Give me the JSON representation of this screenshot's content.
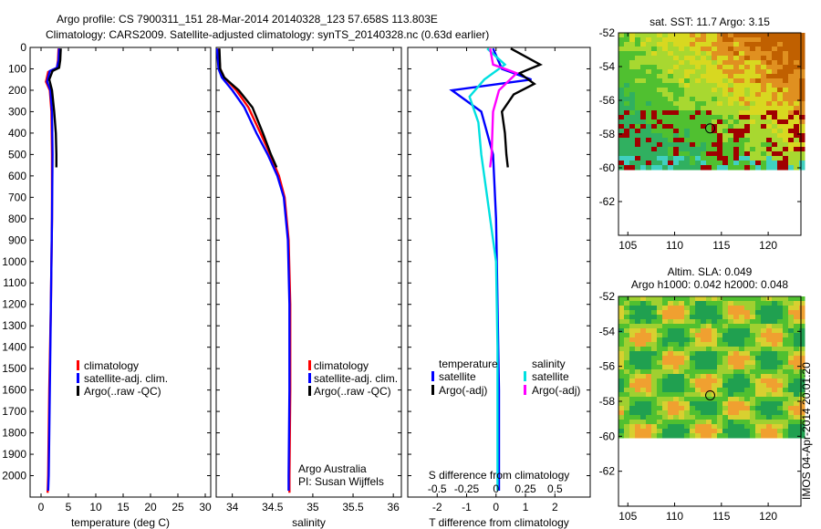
{
  "header": {
    "line1": "Argo profile: CS 7900311_151 28-Mar-2014 20140328_123 57.658S 113.803E",
    "line2": "Climatology: CARS2009. Satellite-adjusted climatology: synTS_20140328.nc (0.63d earlier)"
  },
  "credit": {
    "org": "Argo Australia",
    "pi": "PI: Susan Wijffels"
  },
  "stamp": "IMOS 04-Apr-2014 20:01:20",
  "colors": {
    "climatology": "#ff0000",
    "satellite_adj": "#0000ff",
    "argo": "#000000",
    "sat_diff_S": "#00e0e0",
    "argo_diff_S": "#ff00ff"
  },
  "legend_main": {
    "clim": "climatology",
    "sat": "satellite-adj. clim.",
    "argo": "Argo(..raw -QC)"
  },
  "legend_diff": {
    "t_head": "temperature",
    "s_head": "salinity",
    "t_sat": "satellite",
    "t_argo": "Argo(-adj)",
    "s_sat": "satellite",
    "s_argo": "Argo(-adj)"
  },
  "chart_data": [
    {
      "type": "line",
      "xlabel": "temperature (deg C)",
      "ylabel": "",
      "xlim": [
        -2,
        31
      ],
      "ylim": [
        0,
        2100
      ],
      "y_reversed": true,
      "xticks": [
        0,
        5,
        10,
        15,
        20,
        25,
        30
      ],
      "yticks": [
        0,
        100,
        200,
        300,
        400,
        500,
        600,
        700,
        800,
        900,
        1000,
        1100,
        1200,
        1300,
        1400,
        1500,
        1600,
        1700,
        1800,
        1900,
        2000
      ],
      "series": [
        {
          "name": "climatology",
          "color": "#ff0000",
          "points": [
            [
              3.2,
              5
            ],
            [
              3.1,
              60
            ],
            [
              2.9,
              95
            ],
            [
              1.3,
              115
            ],
            [
              0.9,
              160
            ],
            [
              1.6,
              200
            ],
            [
              1.9,
              300
            ],
            [
              2.0,
              500
            ],
            [
              2.0,
              800
            ],
            [
              1.8,
              1200
            ],
            [
              1.5,
              1600
            ],
            [
              1.3,
              2000
            ],
            [
              1.2,
              2080
            ]
          ]
        },
        {
          "name": "satellite-adj. clim.",
          "color": "#0000ff",
          "points": [
            [
              3.3,
              5
            ],
            [
              3.2,
              60
            ],
            [
              2.9,
              95
            ],
            [
              1.6,
              110
            ],
            [
              1.1,
              160
            ],
            [
              1.7,
              200
            ],
            [
              2.0,
              300
            ],
            [
              2.1,
              500
            ],
            [
              2.0,
              800
            ],
            [
              1.8,
              1200
            ],
            [
              1.6,
              1600
            ],
            [
              1.4,
              2000
            ],
            [
              1.3,
              2070
            ]
          ]
        },
        {
          "name": "Argo(..raw -QC)",
          "color": "#000000",
          "points": [
            [
              3.6,
              5
            ],
            [
              3.5,
              60
            ],
            [
              3.3,
              95
            ],
            [
              2.1,
              110
            ],
            [
              1.5,
              150
            ],
            [
              2.0,
              200
            ],
            [
              2.4,
              300
            ],
            [
              2.7,
              400
            ],
            [
              2.8,
              500
            ],
            [
              2.8,
              560
            ]
          ]
        }
      ]
    },
    {
      "type": "line",
      "xlabel": "salinity",
      "xlim": [
        33.8,
        36.1
      ],
      "ylim": [
        0,
        2100
      ],
      "y_reversed": true,
      "xticks": [
        34,
        34.5,
        35,
        35.5,
        36
      ],
      "series": [
        {
          "name": "climatology",
          "color": "#ff0000",
          "points": [
            [
              33.83,
              5
            ],
            [
              33.85,
              100
            ],
            [
              33.9,
              140
            ],
            [
              34.05,
              200
            ],
            [
              34.2,
              280
            ],
            [
              34.35,
              400
            ],
            [
              34.47,
              500
            ],
            [
              34.58,
              600
            ],
            [
              34.65,
              700
            ],
            [
              34.7,
              900
            ],
            [
              34.72,
              1200
            ],
            [
              34.72,
              1600
            ],
            [
              34.71,
              2000
            ],
            [
              34.71,
              2080
            ]
          ]
        },
        {
          "name": "satellite-adj. clim.",
          "color": "#0000ff",
          "points": [
            [
              33.81,
              5
            ],
            [
              33.83,
              100
            ],
            [
              33.87,
              140
            ],
            [
              34.0,
              200
            ],
            [
              34.15,
              280
            ],
            [
              34.3,
              400
            ],
            [
              34.44,
              500
            ],
            [
              34.56,
              600
            ],
            [
              34.64,
              700
            ],
            [
              34.69,
              900
            ],
            [
              34.71,
              1200
            ],
            [
              34.71,
              1600
            ],
            [
              34.7,
              2000
            ],
            [
              34.7,
              2070
            ]
          ]
        },
        {
          "name": "Argo(..raw -QC)",
          "color": "#000000",
          "points": [
            [
              33.84,
              5
            ],
            [
              33.85,
              100
            ],
            [
              33.9,
              140
            ],
            [
              34.08,
              200
            ],
            [
              34.25,
              280
            ],
            [
              34.38,
              400
            ],
            [
              34.48,
              500
            ],
            [
              34.55,
              560
            ]
          ]
        }
      ]
    },
    {
      "type": "line",
      "xlabel": "T difference from climatology",
      "title_bottom": "S difference from climatology",
      "xlim": [
        -3,
        3.2
      ],
      "ylim": [
        0,
        2100
      ],
      "y_reversed": true,
      "xticks": [
        -2,
        -1,
        0,
        1,
        2
      ],
      "s_ticks_label": [
        "-0.5",
        "-0.25",
        "0",
        "0.25",
        "0.5"
      ],
      "s_ticks_pos": [
        -2,
        -1,
        0,
        1,
        2
      ],
      "series": [
        {
          "name": "temperature satellite",
          "color": "#0000ff",
          "points": [
            [
              -0.1,
              5
            ],
            [
              0.2,
              100
            ],
            [
              1.2,
              150
            ],
            [
              -1.5,
              200
            ],
            [
              -0.5,
              300
            ],
            [
              -0.1,
              500
            ],
            [
              0.0,
              800
            ],
            [
              0.05,
              1200
            ],
            [
              0.1,
              1600
            ],
            [
              0.1,
              2000
            ],
            [
              0.1,
              2070
            ]
          ]
        },
        {
          "name": "temperature Argo(-adj)",
          "color": "#000000",
          "points": [
            [
              0.5,
              5
            ],
            [
              1.5,
              80
            ],
            [
              0.8,
              120
            ],
            [
              1.3,
              170
            ],
            [
              0.6,
              220
            ],
            [
              0.2,
              300
            ],
            [
              0.3,
              400
            ],
            [
              0.35,
              500
            ],
            [
              0.4,
              560
            ]
          ]
        },
        {
          "name": "salinity satellite",
          "color": "#00e0e0",
          "points": [
            [
              -0.3,
              5
            ],
            [
              0.3,
              80
            ],
            [
              -0.4,
              150
            ],
            [
              -0.9,
              230
            ],
            [
              -0.6,
              350
            ],
            [
              -0.5,
              500
            ],
            [
              -0.3,
              700
            ],
            [
              0.0,
              1000
            ],
            [
              0.05,
              1400
            ],
            [
              0.05,
              2000
            ],
            [
              0.05,
              2070
            ]
          ]
        },
        {
          "name": "salinity Argo(-adj)",
          "color": "#ff00ff",
          "points": [
            [
              -0.2,
              5
            ],
            [
              -0.1,
              80
            ],
            [
              0.7,
              120
            ],
            [
              0.1,
              200
            ],
            [
              -0.1,
              300
            ],
            [
              -0.15,
              500
            ],
            [
              -0.2,
              560
            ]
          ]
        }
      ]
    },
    {
      "type": "heatmap",
      "title": "sat. SST: 11.7 Argo: 3.15",
      "xlim": [
        104,
        123.5
      ],
      "ylim": [
        -64,
        -52
      ],
      "xticks": [
        105,
        110,
        115,
        120
      ],
      "yticks": [
        -52,
        -54,
        -56,
        -58,
        -60,
        -62
      ],
      "marker": [
        113.8,
        -57.66
      ]
    },
    {
      "type": "heatmap",
      "title": "Altim. SLA: 0.049",
      "subtitle": "Argo h1000: 0.042 h2000: 0.048",
      "xlim": [
        104,
        123.5
      ],
      "ylim": [
        -64,
        -52
      ],
      "xticks": [
        105,
        110,
        115,
        120
      ],
      "yticks": [
        -52,
        -54,
        -56,
        -58,
        -60,
        -62
      ],
      "marker": [
        113.8,
        -57.66
      ]
    }
  ]
}
